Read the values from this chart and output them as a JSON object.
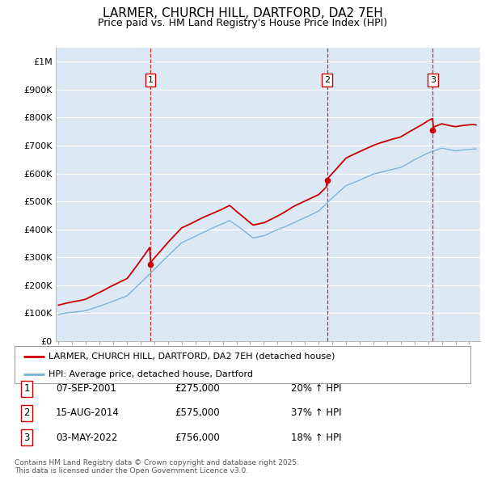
{
  "title": "LARMER, CHURCH HILL, DARTFORD, DA2 7EH",
  "subtitle": "Price paid vs. HM Land Registry's House Price Index (HPI)",
  "title_fontsize": 11,
  "subtitle_fontsize": 9,
  "bg_color": "#dce9f5",
  "legend_entries": [
    "LARMER, CHURCH HILL, DARTFORD, DA2 7EH (detached house)",
    "HPI: Average price, detached house, Dartford"
  ],
  "legend_colors": [
    "#cc0000",
    "#7ab0d4"
  ],
  "sale_years": [
    2001.7,
    2014.62,
    2022.34
  ],
  "sale_values": [
    275000,
    575000,
    756000
  ],
  "sale_labels": [
    "1",
    "2",
    "3"
  ],
  "annotation_rows": [
    {
      "num": "1",
      "date": "07-SEP-2001",
      "price": "£275,000",
      "pct": "20% ↑ HPI"
    },
    {
      "num": "2",
      "date": "15-AUG-2014",
      "price": "£575,000",
      "pct": "37% ↑ HPI"
    },
    {
      "num": "3",
      "date": "03-MAY-2022",
      "price": "£756,000",
      "pct": "18% ↑ HPI"
    }
  ],
  "footer": "Contains HM Land Registry data © Crown copyright and database right 2025.\nThis data is licensed under the Open Government Licence v3.0.",
  "ylim": [
    0,
    1050000
  ],
  "yticks": [
    0,
    100000,
    200000,
    300000,
    400000,
    500000,
    600000,
    700000,
    800000,
    900000,
    1000000
  ],
  "ytick_labels": [
    "£0",
    "£100K",
    "£200K",
    "£300K",
    "£400K",
    "£500K",
    "£600K",
    "£700K",
    "£800K",
    "£900K",
    "£1M"
  ],
  "x_start_year": 1995,
  "x_end_year": 2025,
  "dashed_vline_color": "#cc0000"
}
